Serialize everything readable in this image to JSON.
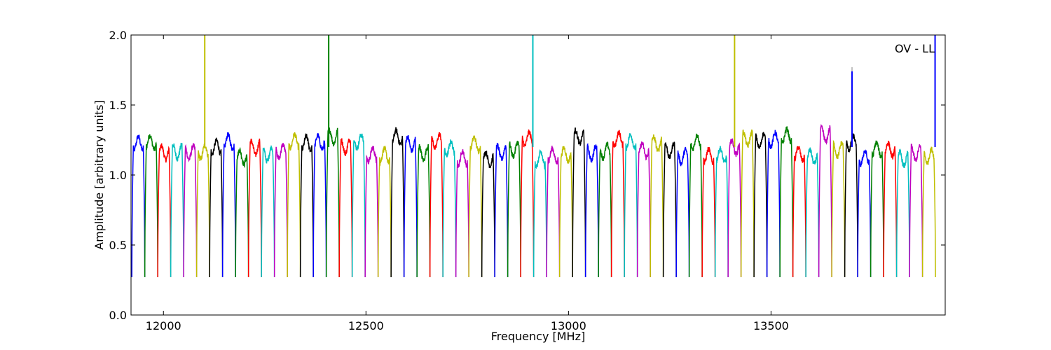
{
  "chart_data": {
    "type": "line",
    "annotation": "OV - LL",
    "xlabel": "Frequency [MHz]",
    "ylabel": "Amplitude [arbitrary units]",
    "xlim": [
      11920,
      13930
    ],
    "ylim": [
      0,
      2.0
    ],
    "xticks": [
      12000,
      12500,
      13000,
      13500
    ],
    "xtick_labels": [
      "12000",
      "12500",
      "13000",
      "13500"
    ],
    "yticks": [
      0.0,
      0.5,
      1.0,
      1.5,
      2.0
    ],
    "ytick_labels": [
      "0.0",
      "0.5",
      "1.0",
      "1.5",
      "2.0"
    ],
    "grid": false,
    "color_cycle": [
      "#0000ff",
      "#008000",
      "#ff0000",
      "#00bfbf",
      "#bf00bf",
      "#bfbf00",
      "#000000"
    ],
    "band_width_mhz": 32,
    "band_start_mhz": 11922,
    "band_count": 62,
    "band_level": 1.18,
    "band_edge_min": 0.27,
    "spikes": [
      {
        "x": 12102,
        "y": 2.0,
        "color": "#bfbf00"
      },
      {
        "x": 12408,
        "y": 2.0,
        "color": "#008000"
      },
      {
        "x": 12912,
        "y": 2.0,
        "color": "#00bfbf"
      },
      {
        "x": 13410,
        "y": 2.0,
        "color": "#bfbf00"
      },
      {
        "x": 13700,
        "y": 1.77,
        "color": "#c0c0c0"
      },
      {
        "x": 13700,
        "y": 1.74,
        "color": "#0000ff"
      },
      {
        "x": 13905,
        "y": 2.0,
        "color": "#0000ff"
      }
    ]
  }
}
